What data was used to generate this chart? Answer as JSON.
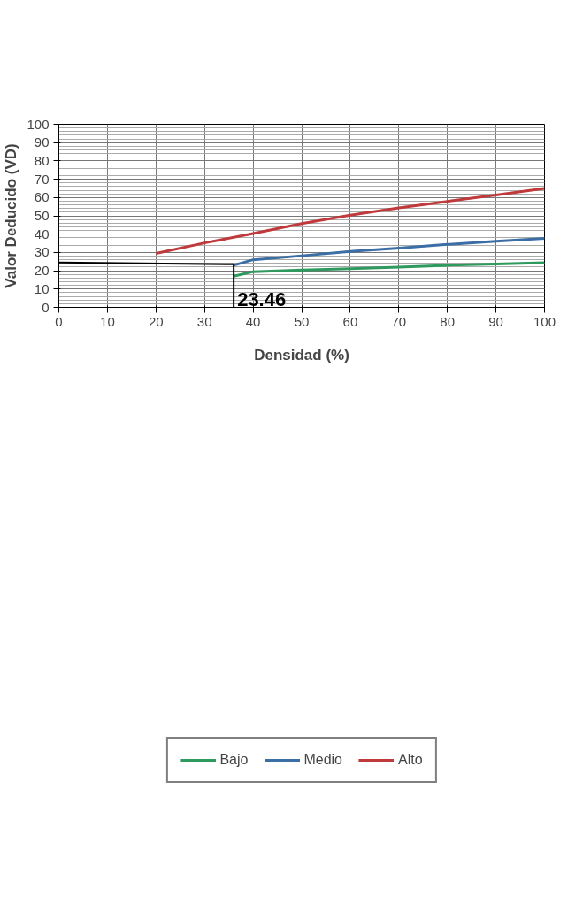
{
  "chart_data": {
    "type": "line",
    "xlabel": "Densidad (%)",
    "ylabel": "Valor Deducido (VD)",
    "xlim": [
      0,
      100
    ],
    "ylim": [
      0,
      100
    ],
    "xticks": [
      0,
      10,
      20,
      30,
      40,
      50,
      60,
      70,
      80,
      90,
      100
    ],
    "yticks": [
      0,
      10,
      20,
      30,
      40,
      50,
      60,
      70,
      80,
      90,
      100
    ],
    "grid": true,
    "legend": "bottom",
    "marker": "none",
    "line_style": "solid",
    "series": [
      {
        "name": "Bajo",
        "color": "#2e9a5e",
        "x": [
          36,
          40,
          50,
          60,
          70,
          80,
          90,
          100
        ],
        "values": [
          17,
          19.5,
          20.4,
          21.1,
          22,
          23,
          23.7,
          24.4
        ]
      },
      {
        "name": "Medio",
        "color": "#3a6ea5",
        "x": [
          36,
          40,
          50,
          60,
          70,
          80,
          90,
          100
        ],
        "values": [
          23,
          26,
          28.2,
          30.5,
          32.4,
          34.4,
          36.1,
          37.7
        ]
      },
      {
        "name": "Alto",
        "color": "#c0393b",
        "x": [
          20,
          30,
          40,
          50,
          60,
          70,
          80,
          90,
          100
        ],
        "values": [
          29.5,
          35.2,
          40.3,
          45.8,
          50.4,
          54.3,
          57.9,
          61.4,
          65
        ]
      },
      {
        "color": "#000000",
        "x": [
          0,
          36,
          36
        ],
        "values": [
          24.5,
          23.5,
          0
        ]
      }
    ],
    "annotations": [
      {
        "text": "23.46",
        "x": 36,
        "y": 0
      }
    ]
  }
}
